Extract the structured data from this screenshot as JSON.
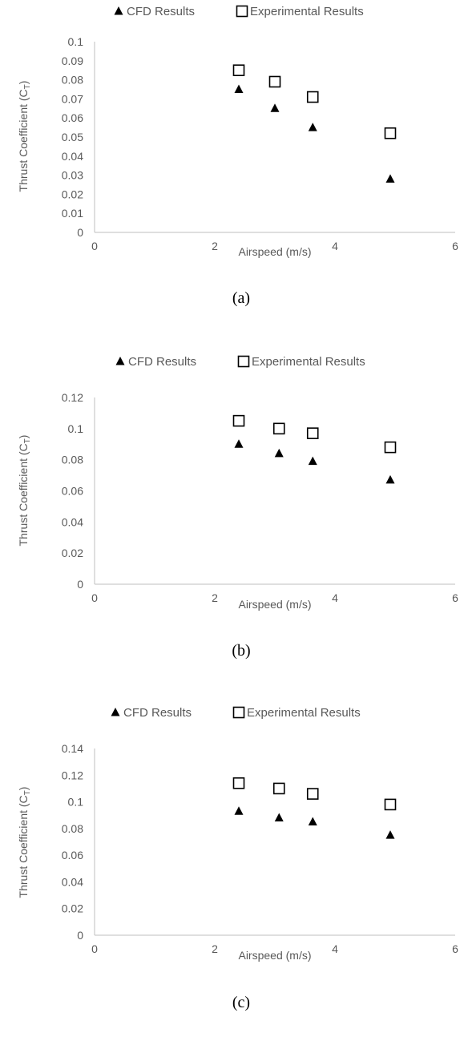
{
  "colors": {
    "marker": "#000000",
    "axis": "#bfbfbf",
    "text": "#595959"
  },
  "chart_data": [
    {
      "type": "scatter",
      "caption": "(a)",
      "legend": [
        "CFD Results",
        "Experimental Results"
      ],
      "legend_position": "top",
      "xlabel": "Airspeed (m/s)",
      "ylabel_main": "Thrust Coefficient (C",
      "ylabel_sub": "T",
      "ylabel_end": ")",
      "xlim": [
        0,
        6
      ],
      "ylim": [
        0,
        0.1
      ],
      "x_ticks": [
        0,
        2,
        4,
        6
      ],
      "x_tick_labels": [
        "0",
        "2",
        "4",
        "6"
      ],
      "y_ticks": [
        0,
        0.01,
        0.02,
        0.03,
        0.04,
        0.05,
        0.06,
        0.07,
        0.08,
        0.09,
        0.1
      ],
      "y_tick_labels": [
        "0",
        "0.01",
        "0.02",
        "0.03",
        "0.04",
        "0.05",
        "0.06",
        "0.07",
        "0.08",
        "0.09",
        "0.1"
      ],
      "grid": false,
      "series": [
        {
          "name": "CFD Results",
          "marker": "triangle",
          "x": [
            2.4,
            3.0,
            3.63,
            4.92
          ],
          "y": [
            0.075,
            0.065,
            0.055,
            0.028
          ]
        },
        {
          "name": "Experimental Results",
          "marker": "square",
          "x": [
            2.4,
            3.0,
            3.63,
            4.92
          ],
          "y": [
            0.085,
            0.079,
            0.071,
            0.052
          ]
        }
      ]
    },
    {
      "type": "scatter",
      "caption": "(b)",
      "legend": [
        "CFD Results",
        "Experimental Results"
      ],
      "legend_position": "top",
      "xlabel": "Airspeed (m/s)",
      "ylabel_main": "Thrust Coefficient (C",
      "ylabel_sub": "T",
      "ylabel_end": ")",
      "xlim": [
        0,
        6
      ],
      "ylim": [
        0,
        0.12
      ],
      "x_ticks": [
        0,
        2,
        4,
        6
      ],
      "x_tick_labels": [
        "0",
        "2",
        "4",
        "6"
      ],
      "y_ticks": [
        0,
        0.02,
        0.04,
        0.06,
        0.08,
        0.1,
        0.12
      ],
      "y_tick_labels": [
        "0",
        "0.02",
        "0.04",
        "0.06",
        "0.08",
        "0.1",
        "0.12"
      ],
      "grid": false,
      "series": [
        {
          "name": "CFD Results",
          "marker": "triangle",
          "x": [
            2.4,
            3.07,
            3.63,
            4.92
          ],
          "y": [
            0.09,
            0.084,
            0.079,
            0.067
          ]
        },
        {
          "name": "Experimental Results",
          "marker": "square",
          "x": [
            2.4,
            3.07,
            3.63,
            4.92
          ],
          "y": [
            0.105,
            0.1,
            0.097,
            0.088
          ]
        }
      ]
    },
    {
      "type": "scatter",
      "caption": "(c)",
      "legend": [
        "CFD Results",
        "Experimental Results"
      ],
      "legend_position": "top",
      "xlabel": "Airspeed (m/s)",
      "ylabel_main": "Thrust Coefficient (C",
      "ylabel_sub": "T",
      "ylabel_end": ")",
      "xlim": [
        0,
        6
      ],
      "ylim": [
        0,
        0.14
      ],
      "x_ticks": [
        0,
        2,
        4,
        6
      ],
      "x_tick_labels": [
        "0",
        "2",
        "4",
        "6"
      ],
      "y_ticks": [
        0,
        0.02,
        0.04,
        0.06,
        0.08,
        0.1,
        0.12,
        0.14
      ],
      "y_tick_labels": [
        "0",
        "0.02",
        "0.04",
        "0.06",
        "0.08",
        "0.1",
        "0.12",
        "0.14"
      ],
      "grid": false,
      "series": [
        {
          "name": "CFD Results",
          "marker": "triangle",
          "x": [
            2.4,
            3.07,
            3.63,
            4.92
          ],
          "y": [
            0.093,
            0.088,
            0.085,
            0.075
          ]
        },
        {
          "name": "Experimental Results",
          "marker": "square",
          "x": [
            2.4,
            3.07,
            3.63,
            4.92
          ],
          "y": [
            0.114,
            0.11,
            0.106,
            0.098
          ]
        }
      ]
    }
  ]
}
